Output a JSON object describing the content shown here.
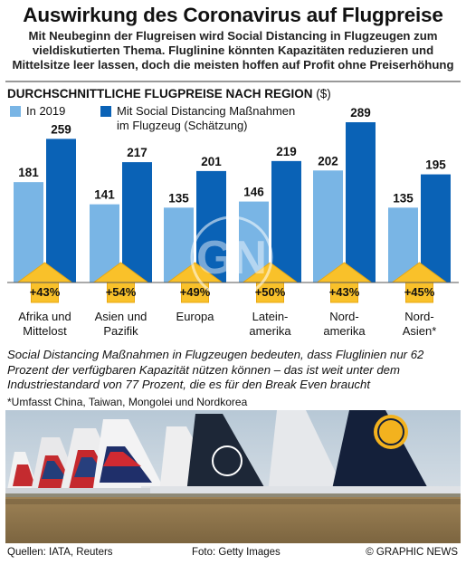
{
  "title": "Auswirkung des Coronavirus auf Flugpreise",
  "subtitle": "Mit Neubeginn der Flugreisen wird Social Distancing in Flugzeugen zum vieldiskutierten Thema. Fluglinine könnten Kapazitäten reduzieren und Mittelsitze leer lassen, doch die meisten hoffen auf Profit ohne Preiserhöhung",
  "chart_title": "DURCHSCHNITTLICHE FLUGPREISE NACH REGION",
  "chart_unit": "($)",
  "legend": {
    "series1": "In 2019",
    "series2_line1": "Mit Social Distancing Maßnahmen",
    "series2_line2": "im Flugzeug (Schätzung)"
  },
  "colors": {
    "in_2019": "#79b5e5",
    "social_distancing": "#0a62b6",
    "arrow": "#f9c12a",
    "arrow_stroke": "#e9a812"
  },
  "chart_data": {
    "type": "bar",
    "title": "DURCHSCHNITTLICHE FLUGPREISE NACH REGION ($)",
    "categories": [
      [
        "Afrika und",
        "Mittelost"
      ],
      [
        "Asien und",
        "Pazifik"
      ],
      [
        "Europa"
      ],
      [
        "Latein-",
        "amerika"
      ],
      [
        "Nord-",
        "amerika"
      ],
      [
        "Nord-",
        "Asien*"
      ]
    ],
    "series": [
      {
        "name": "In 2019",
        "values": [
          181,
          141,
          135,
          146,
          202,
          135
        ]
      },
      {
        "name": "Mit Social Distancing Maßnahmen im Flugzeug (Schätzung)",
        "values": [
          259,
          217,
          201,
          219,
          289,
          195
        ]
      }
    ],
    "increase_labels": [
      "+43%",
      "+54%",
      "+49%",
      "+50%",
      "+43%",
      "+45%"
    ],
    "ylim": [
      0,
      300
    ],
    "grid": false,
    "legend_position": "top-left"
  },
  "note": "Social Distancing Maßnahmen in Flugzeugen bedeuten, dass Fluglinien nur 62 Prozent der verfügbaren Kapazität nützen können – das ist weit unter dem Industriestandard von 77 Prozent, die es für den Break Even braucht",
  "footnote": "*Umfasst China, Taiwan, Mongolei und Nordkorea",
  "source": "Quellen: IATA, Reuters",
  "photo_credit": "Foto: Getty Images",
  "brand": "© GRAPHIC NEWS",
  "watermark_text": "GRAPHIC NEWS"
}
